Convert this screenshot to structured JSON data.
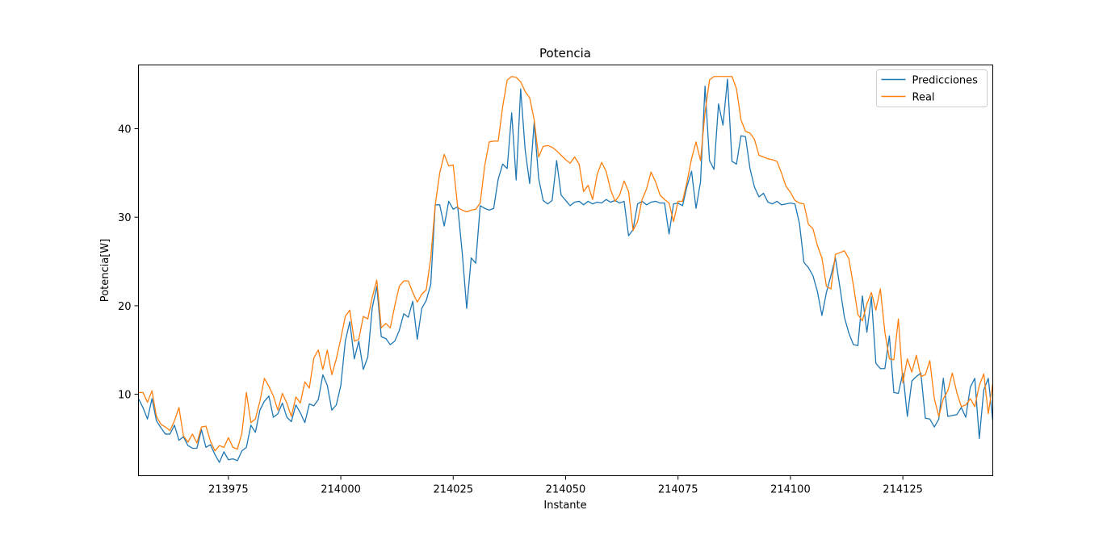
{
  "chart_data": {
    "type": "line",
    "title": "Potencia",
    "xlabel": "Instante",
    "ylabel": "Potencia[W]",
    "xlim": [
      213955,
      214145
    ],
    "ylim": [
      0.8,
      47.2
    ],
    "xticks": [
      213975,
      214000,
      214025,
      214050,
      214075,
      214100,
      214125
    ],
    "yticks": [
      10,
      20,
      30,
      40
    ],
    "grid": false,
    "legend_position": "top-right",
    "x_start": 213955,
    "x_step": 1,
    "series": [
      {
        "name": "Predicciones",
        "color": "#1f77b4",
        "values": [
          9.5,
          8.5,
          7.2,
          9.5,
          7.0,
          6.2,
          5.5,
          5.5,
          6.5,
          4.8,
          5.2,
          4.2,
          3.9,
          3.9,
          6.0,
          4.0,
          4.3,
          3.2,
          2.3,
          3.5,
          2.6,
          2.7,
          2.5,
          3.6,
          4.0,
          6.5,
          5.7,
          8.2,
          9.2,
          9.8,
          7.4,
          7.8,
          9.0,
          7.4,
          6.9,
          8.8,
          7.9,
          6.8,
          8.9,
          8.7,
          9.4,
          12.2,
          11.0,
          8.2,
          8.8,
          11.0,
          16.0,
          18.2,
          14.0,
          16.0,
          12.8,
          14.2,
          19.8,
          22.2,
          16.5,
          16.3,
          15.6,
          16.0,
          17.2,
          19.1,
          18.7,
          20.5,
          16.2,
          19.7,
          20.6,
          22.4,
          31.4,
          31.4,
          29.0,
          31.8,
          30.9,
          31.2,
          26.0,
          19.7,
          25.4,
          24.8,
          31.3,
          31.0,
          30.8,
          31.0,
          34.3,
          36.0,
          35.5,
          41.8,
          34.2,
          44.5,
          37.6,
          33.8,
          40.7,
          34.4,
          31.9,
          31.5,
          31.9,
          36.4,
          32.5,
          31.9,
          31.3,
          31.7,
          31.8,
          31.4,
          31.8,
          31.5,
          31.7,
          31.6,
          32.0,
          31.7,
          31.9,
          31.6,
          31.8,
          27.9,
          28.6,
          31.5,
          31.8,
          31.4,
          31.7,
          31.8,
          31.6,
          31.6,
          28.1,
          31.5,
          31.6,
          31.3,
          33.5,
          35.2,
          31.0,
          34.0,
          44.8,
          36.4,
          35.4,
          42.8,
          40.4,
          45.6,
          36.3,
          36.0,
          39.2,
          39.1,
          35.5,
          33.4,
          32.3,
          32.7,
          31.7,
          31.5,
          31.8,
          31.4,
          31.5,
          31.6,
          31.5,
          29.3,
          24.9,
          24.3,
          23.4,
          21.6,
          18.9,
          21.5,
          23.4,
          25.4,
          22.1,
          18.7,
          16.9,
          15.6,
          15.5,
          21.1,
          17.0,
          21.0,
          13.5,
          12.9,
          12.9,
          16.6,
          10.2,
          10.1,
          12.4,
          7.5,
          11.5,
          12.0,
          12.4,
          7.3,
          7.2,
          6.3,
          7.2,
          11.8,
          7.5,
          7.6,
          7.7,
          8.5,
          7.4,
          10.8,
          11.8,
          5.0,
          10.5,
          11.8,
          7.0,
          9.8
        ]
      },
      {
        "name": "Real",
        "color": "#ff7f0e",
        "values": [
          10.2,
          10.2,
          9.1,
          10.4,
          7.5,
          6.6,
          6.3,
          5.9,
          7.0,
          8.5,
          5.3,
          4.6,
          5.5,
          4.5,
          6.3,
          6.4,
          4.7,
          3.6,
          4.2,
          4.0,
          5.1,
          4.0,
          3.8,
          5.6,
          10.2,
          6.8,
          7.2,
          9.2,
          11.8,
          10.9,
          9.8,
          8.2,
          10.1,
          9.0,
          7.5,
          9.7,
          9.0,
          11.4,
          10.7,
          14.1,
          15.0,
          12.8,
          15.0,
          12.2,
          14.0,
          16.3,
          18.8,
          19.5,
          16.0,
          16.2,
          18.8,
          18.5,
          21.0,
          22.9,
          17.5,
          18.0,
          17.5,
          20.0,
          22.2,
          22.8,
          22.8,
          21.5,
          20.4,
          21.3,
          21.8,
          25.4,
          31.4,
          35.0,
          37.1,
          35.8,
          35.9,
          31.1,
          30.8,
          30.6,
          30.8,
          30.9,
          31.6,
          35.8,
          38.5,
          38.6,
          38.6,
          42.5,
          45.5,
          45.9,
          45.8,
          45.3,
          44.2,
          43.5,
          41.0,
          36.8,
          38.0,
          38.1,
          37.9,
          37.5,
          37.0,
          36.5,
          36.1,
          36.8,
          36.0,
          32.9,
          33.6,
          32.0,
          34.8,
          36.2,
          35.2,
          33.1,
          31.8,
          32.5,
          34.1,
          32.9,
          28.5,
          29.5,
          32.0,
          33.2,
          35.1,
          34.0,
          32.5,
          32.0,
          31.6,
          29.5,
          31.8,
          31.8,
          34.0,
          36.6,
          38.5,
          36.4,
          41.8,
          45.5,
          45.9,
          45.9,
          45.9,
          45.9,
          45.9,
          44.5,
          41.0,
          39.7,
          39.5,
          38.8,
          37.0,
          36.8,
          36.6,
          36.5,
          36.3,
          35.0,
          33.5,
          32.8,
          31.9,
          31.6,
          31.5,
          29.2,
          28.7,
          26.8,
          25.4,
          22.2,
          21.9,
          25.8,
          26.0,
          26.2,
          25.3,
          22.3,
          19.0,
          18.3,
          20.2,
          21.5,
          19.5,
          21.9,
          17.0,
          14.0,
          13.9,
          18.5,
          11.3,
          14.0,
          12.5,
          14.4,
          12.0,
          12.2,
          13.8,
          9.5,
          7.5,
          9.5,
          10.4,
          12.4,
          10.2,
          8.6,
          8.8,
          9.5,
          8.6,
          11.0,
          12.3,
          7.8,
          11.2,
          12.0,
          9.1,
          10.4
        ]
      }
    ]
  }
}
